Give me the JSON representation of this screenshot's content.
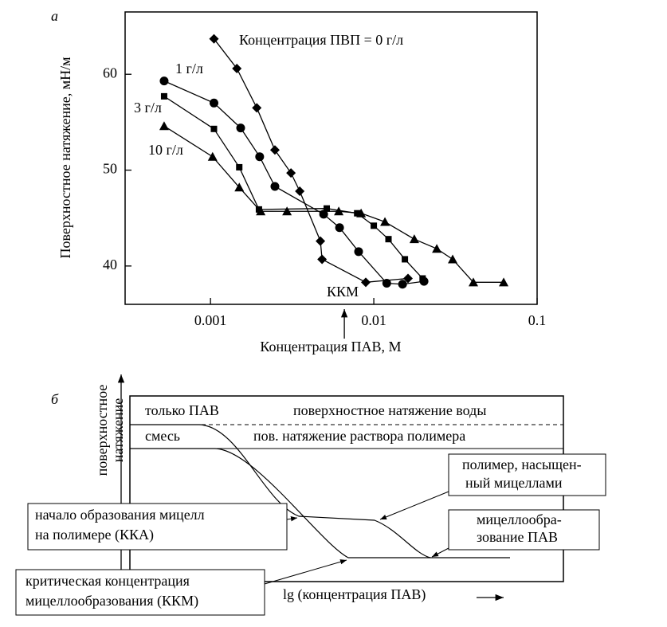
{
  "chart_data": {
    "type": "line",
    "panel_label": "а",
    "xlabel": "Концентрация ПАВ, М",
    "ylabel": "Поверхностное натяжение, мН/м",
    "xscale": "log",
    "xlim": [
      0.0003,
      0.1
    ],
    "xticks": [
      0.001,
      0.01,
      0.1
    ],
    "ylim": [
      36,
      66.5
    ],
    "yticks": [
      40,
      50,
      60
    ],
    "annotations": [
      "Концентрация ПВП = 0 г/л",
      "1 г/л",
      "3 г/л",
      "10 г/л",
      "ККМ"
    ],
    "cmc_x": 0.0066,
    "series": [
      {
        "marker": "diamond",
        "color": "#000000",
        "x": [
          0.00105,
          0.00145,
          0.00192,
          0.00248,
          0.00311,
          0.00352,
          0.00471,
          0.00482,
          0.00893,
          0.0162
        ],
        "values": [
          63.7,
          60.6,
          56.5,
          52.1,
          49.7,
          47.8,
          42.6,
          40.7,
          38.3,
          38.7
        ]
      },
      {
        "marker": "circle",
        "color": "#000000",
        "x": [
          0.00052,
          0.00105,
          0.00153,
          0.002,
          0.00248,
          0.00493,
          0.00617,
          0.00807,
          0.012,
          0.015,
          0.0203
        ],
        "values": [
          59.3,
          57.0,
          54.4,
          51.4,
          48.3,
          45.4,
          44.0,
          41.5,
          38.2,
          38.1,
          38.4
        ]
      },
      {
        "marker": "square",
        "color": "#000000",
        "x": [
          0.00052,
          0.00105,
          0.0015,
          0.00198,
          0.00515,
          0.00791,
          0.01,
          0.0123,
          0.0155,
          0.0199
        ],
        "values": [
          57.7,
          54.3,
          50.3,
          45.9,
          46.0,
          45.5,
          44.2,
          42.8,
          40.7,
          38.7
        ]
      },
      {
        "marker": "triangle",
        "color": "#000000",
        "x": [
          0.00052,
          0.00103,
          0.0015,
          0.00203,
          0.00294,
          0.0061,
          0.00836,
          0.0117,
          0.0177,
          0.0243,
          0.0304,
          0.0407,
          0.0624
        ],
        "values": [
          54.6,
          51.4,
          48.2,
          45.7,
          45.7,
          45.7,
          45.5,
          44.6,
          42.8,
          41.8,
          40.7,
          38.3,
          38.3
        ]
      }
    ]
  },
  "diagram": {
    "panel_label": "б",
    "y_axis": [
      "поверхностное",
      "натяжение"
    ],
    "x_axis": "lg (концентрация ПАВ)",
    "top_left": "только ПАВ",
    "top_right": "поверхностное натяжение воды",
    "second_left": "смесь",
    "second_right": "пов. натяжение раствора полимера",
    "box_saturated": [
      "полимер, насыщен-",
      "ный мицеллами"
    ],
    "box_cac": [
      "начало образования мицелл",
      "на полимере (ККА)"
    ],
    "box_micellization": [
      "мицеллообра-",
      "зование ПАВ"
    ],
    "box_cmc": [
      "критическая концентрация",
      "мицеллообразования (ККМ)"
    ]
  }
}
